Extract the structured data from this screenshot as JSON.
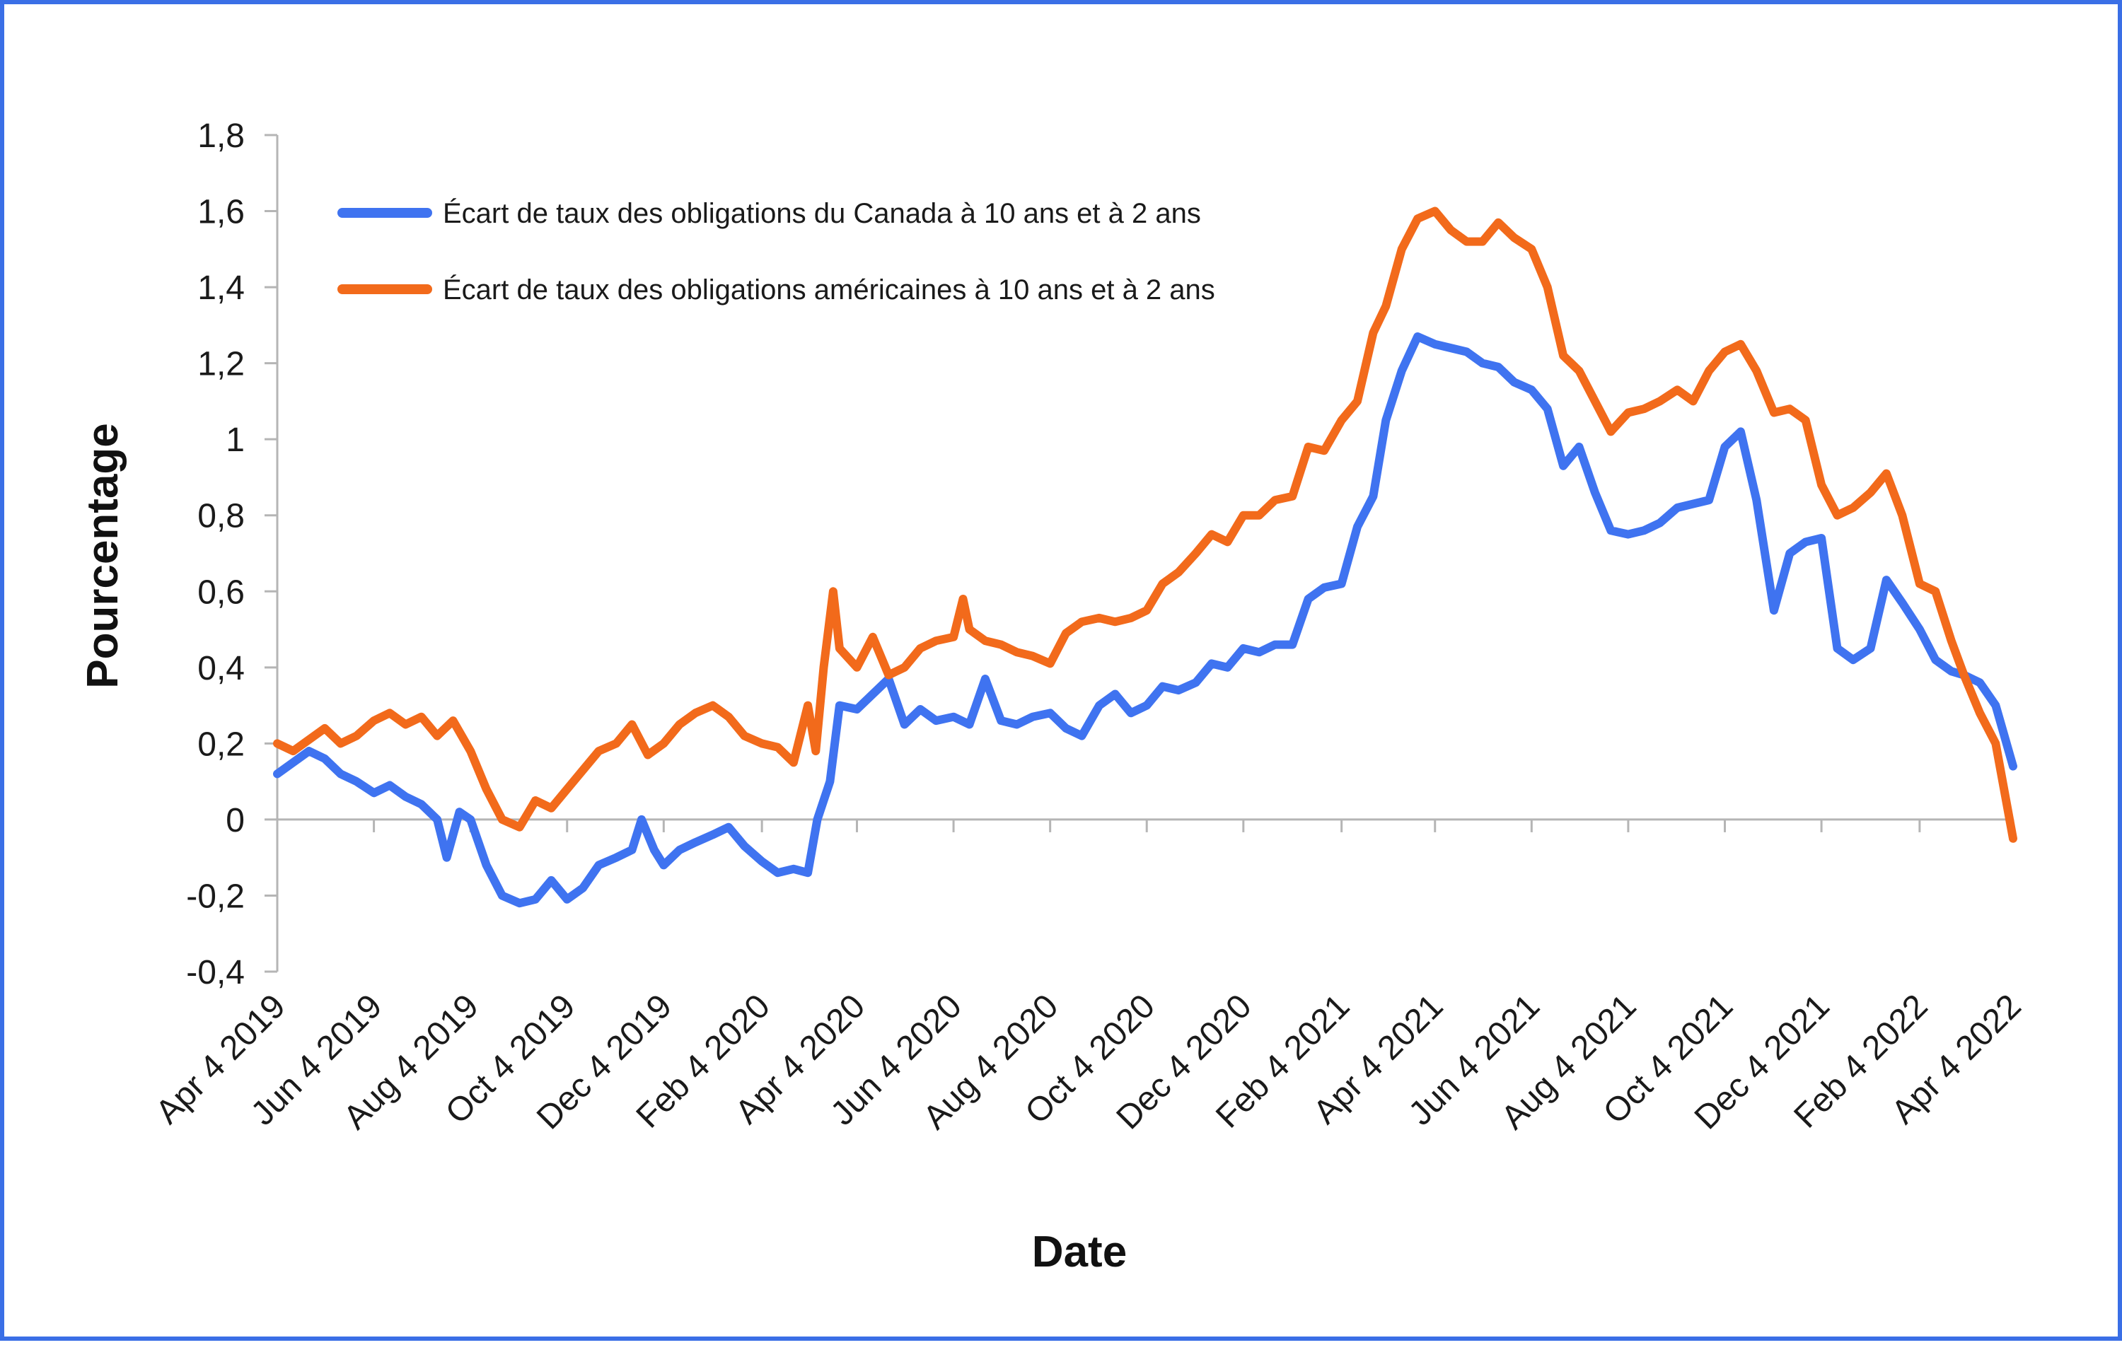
{
  "chart_data": {
    "type": "line",
    "title": "",
    "xlabel": "Date",
    "ylabel": "Pourcentage",
    "ylim": [
      -0.4,
      1.8
    ],
    "yticks": [
      {
        "value": 1.8,
        "label": "1,8"
      },
      {
        "value": 1.6,
        "label": "1,6"
      },
      {
        "value": 1.4,
        "label": "1,4"
      },
      {
        "value": 1.2,
        "label": "1,2"
      },
      {
        "value": 1.0,
        "label": "1"
      },
      {
        "value": 0.8,
        "label": "0,8"
      },
      {
        "value": 0.6,
        "label": "0,6"
      },
      {
        "value": 0.4,
        "label": "0,4"
      },
      {
        "value": 0.2,
        "label": "0,2"
      },
      {
        "value": 0.0,
        "label": "0"
      },
      {
        "value": -0.2,
        "label": "-0,2"
      },
      {
        "value": -0.4,
        "label": "-0,4"
      }
    ],
    "xlim": [
      "2019-04-04",
      "2022-04-04"
    ],
    "xticks": [
      {
        "date": "2019-04-04",
        "label": "Apr 4 2019"
      },
      {
        "date": "2019-06-04",
        "label": "Jun 4 2019"
      },
      {
        "date": "2019-08-04",
        "label": "Aug 4 2019"
      },
      {
        "date": "2019-10-04",
        "label": "Oct 4 2019"
      },
      {
        "date": "2019-12-04",
        "label": "Dec 4 2019"
      },
      {
        "date": "2020-02-04",
        "label": "Feb 4 2020"
      },
      {
        "date": "2020-04-04",
        "label": "Apr 4 2020"
      },
      {
        "date": "2020-06-04",
        "label": "Jun 4 2020"
      },
      {
        "date": "2020-08-04",
        "label": "Aug 4 2020"
      },
      {
        "date": "2020-10-04",
        "label": "Oct 4 2020"
      },
      {
        "date": "2020-12-04",
        "label": "Dec 4 2020"
      },
      {
        "date": "2021-02-04",
        "label": "Feb 4 2021"
      },
      {
        "date": "2021-04-04",
        "label": "Apr 4 2021"
      },
      {
        "date": "2021-06-04",
        "label": "Jun 4 2021"
      },
      {
        "date": "2021-08-04",
        "label": "Aug 4 2021"
      },
      {
        "date": "2021-10-04",
        "label": "Oct 4 2021"
      },
      {
        "date": "2021-12-04",
        "label": "Dec 4 2021"
      },
      {
        "date": "2022-02-04",
        "label": "Feb 4 2022"
      },
      {
        "date": "2022-04-04",
        "label": "Apr 4 2022"
      }
    ],
    "grid": false,
    "legend_position": "top-left",
    "series": [
      {
        "name": "Écart de taux des obligations du Canada à 10 ans et à 2 ans",
        "color": "#3f73f0",
        "points": [
          [
            "2019-04-04",
            0.12
          ],
          [
            "2019-04-14",
            0.15
          ],
          [
            "2019-04-24",
            0.18
          ],
          [
            "2019-05-04",
            0.16
          ],
          [
            "2019-05-14",
            0.12
          ],
          [
            "2019-05-24",
            0.1
          ],
          [
            "2019-06-04",
            0.07
          ],
          [
            "2019-06-14",
            0.09
          ],
          [
            "2019-06-24",
            0.06
          ],
          [
            "2019-07-04",
            0.04
          ],
          [
            "2019-07-14",
            0.0
          ],
          [
            "2019-07-20",
            -0.1
          ],
          [
            "2019-07-28",
            0.02
          ],
          [
            "2019-08-04",
            0.0
          ],
          [
            "2019-08-14",
            -0.12
          ],
          [
            "2019-08-24",
            -0.2
          ],
          [
            "2019-09-04",
            -0.22
          ],
          [
            "2019-09-14",
            -0.21
          ],
          [
            "2019-09-24",
            -0.16
          ],
          [
            "2019-10-04",
            -0.21
          ],
          [
            "2019-10-14",
            -0.18
          ],
          [
            "2019-10-24",
            -0.12
          ],
          [
            "2019-11-04",
            -0.1
          ],
          [
            "2019-11-14",
            -0.08
          ],
          [
            "2019-11-20",
            0.0
          ],
          [
            "2019-11-28",
            -0.08
          ],
          [
            "2019-12-04",
            -0.12
          ],
          [
            "2019-12-14",
            -0.08
          ],
          [
            "2019-12-24",
            -0.06
          ],
          [
            "2020-01-04",
            -0.04
          ],
          [
            "2020-01-14",
            -0.02
          ],
          [
            "2020-01-24",
            -0.07
          ],
          [
            "2020-02-04",
            -0.11
          ],
          [
            "2020-02-14",
            -0.14
          ],
          [
            "2020-02-24",
            -0.13
          ],
          [
            "2020-03-04",
            -0.14
          ],
          [
            "2020-03-10",
            0.0
          ],
          [
            "2020-03-18",
            0.1
          ],
          [
            "2020-03-24",
            0.3
          ],
          [
            "2020-04-04",
            0.29
          ],
          [
            "2020-04-14",
            0.33
          ],
          [
            "2020-04-24",
            0.37
          ],
          [
            "2020-05-04",
            0.25
          ],
          [
            "2020-05-14",
            0.29
          ],
          [
            "2020-05-24",
            0.26
          ],
          [
            "2020-06-04",
            0.27
          ],
          [
            "2020-06-14",
            0.25
          ],
          [
            "2020-06-24",
            0.37
          ],
          [
            "2020-07-04",
            0.26
          ],
          [
            "2020-07-14",
            0.25
          ],
          [
            "2020-07-24",
            0.27
          ],
          [
            "2020-08-04",
            0.28
          ],
          [
            "2020-08-14",
            0.24
          ],
          [
            "2020-08-24",
            0.22
          ],
          [
            "2020-09-04",
            0.3
          ],
          [
            "2020-09-14",
            0.33
          ],
          [
            "2020-09-24",
            0.28
          ],
          [
            "2020-10-04",
            0.3
          ],
          [
            "2020-10-14",
            0.35
          ],
          [
            "2020-10-24",
            0.34
          ],
          [
            "2020-11-04",
            0.36
          ],
          [
            "2020-11-14",
            0.41
          ],
          [
            "2020-11-24",
            0.4
          ],
          [
            "2020-12-04",
            0.45
          ],
          [
            "2020-12-14",
            0.44
          ],
          [
            "2020-12-24",
            0.46
          ],
          [
            "2021-01-04",
            0.46
          ],
          [
            "2021-01-14",
            0.58
          ],
          [
            "2021-01-24",
            0.61
          ],
          [
            "2021-02-04",
            0.62
          ],
          [
            "2021-02-14",
            0.77
          ],
          [
            "2021-02-24",
            0.85
          ],
          [
            "2021-03-04",
            1.05
          ],
          [
            "2021-03-14",
            1.18
          ],
          [
            "2021-03-24",
            1.27
          ],
          [
            "2021-04-04",
            1.25
          ],
          [
            "2021-04-14",
            1.24
          ],
          [
            "2021-04-24",
            1.23
          ],
          [
            "2021-05-04",
            1.2
          ],
          [
            "2021-05-14",
            1.19
          ],
          [
            "2021-05-24",
            1.15
          ],
          [
            "2021-06-04",
            1.13
          ],
          [
            "2021-06-14",
            1.08
          ],
          [
            "2021-06-24",
            0.93
          ],
          [
            "2021-07-04",
            0.98
          ],
          [
            "2021-07-14",
            0.86
          ],
          [
            "2021-07-24",
            0.76
          ],
          [
            "2021-08-04",
            0.75
          ],
          [
            "2021-08-14",
            0.76
          ],
          [
            "2021-08-24",
            0.78
          ],
          [
            "2021-09-04",
            0.82
          ],
          [
            "2021-09-14",
            0.83
          ],
          [
            "2021-09-24",
            0.84
          ],
          [
            "2021-10-04",
            0.98
          ],
          [
            "2021-10-14",
            1.02
          ],
          [
            "2021-10-24",
            0.84
          ],
          [
            "2021-11-04",
            0.55
          ],
          [
            "2021-11-14",
            0.7
          ],
          [
            "2021-11-24",
            0.73
          ],
          [
            "2021-12-04",
            0.74
          ],
          [
            "2021-12-14",
            0.45
          ],
          [
            "2021-12-24",
            0.42
          ],
          [
            "2022-01-04",
            0.45
          ],
          [
            "2022-01-14",
            0.63
          ],
          [
            "2022-01-24",
            0.57
          ],
          [
            "2022-02-04",
            0.5
          ],
          [
            "2022-02-14",
            0.42
          ],
          [
            "2022-02-24",
            0.39
          ],
          [
            "2022-03-04",
            0.38
          ],
          [
            "2022-03-14",
            0.36
          ],
          [
            "2022-03-24",
            0.3
          ],
          [
            "2022-04-04",
            0.14
          ]
        ]
      },
      {
        "name": "Écart de taux des obligations américaines à 10 ans et à 2 ans",
        "color": "#f26a1b",
        "points": [
          [
            "2019-04-04",
            0.2
          ],
          [
            "2019-04-14",
            0.18
          ],
          [
            "2019-04-24",
            0.21
          ],
          [
            "2019-05-04",
            0.24
          ],
          [
            "2019-05-14",
            0.2
          ],
          [
            "2019-05-24",
            0.22
          ],
          [
            "2019-06-04",
            0.26
          ],
          [
            "2019-06-14",
            0.28
          ],
          [
            "2019-06-24",
            0.25
          ],
          [
            "2019-07-04",
            0.27
          ],
          [
            "2019-07-14",
            0.22
          ],
          [
            "2019-07-24",
            0.26
          ],
          [
            "2019-08-04",
            0.18
          ],
          [
            "2019-08-14",
            0.08
          ],
          [
            "2019-08-24",
            0.0
          ],
          [
            "2019-09-04",
            -0.02
          ],
          [
            "2019-09-14",
            0.05
          ],
          [
            "2019-09-24",
            0.03
          ],
          [
            "2019-10-04",
            0.08
          ],
          [
            "2019-10-14",
            0.13
          ],
          [
            "2019-10-24",
            0.18
          ],
          [
            "2019-11-04",
            0.2
          ],
          [
            "2019-11-14",
            0.25
          ],
          [
            "2019-11-24",
            0.17
          ],
          [
            "2019-12-04",
            0.2
          ],
          [
            "2019-12-14",
            0.25
          ],
          [
            "2019-12-24",
            0.28
          ],
          [
            "2020-01-04",
            0.3
          ],
          [
            "2020-01-14",
            0.27
          ],
          [
            "2020-01-24",
            0.22
          ],
          [
            "2020-02-04",
            0.2
          ],
          [
            "2020-02-14",
            0.19
          ],
          [
            "2020-02-24",
            0.15
          ],
          [
            "2020-03-04",
            0.3
          ],
          [
            "2020-03-09",
            0.18
          ],
          [
            "2020-03-14",
            0.4
          ],
          [
            "2020-03-20",
            0.6
          ],
          [
            "2020-03-24",
            0.45
          ],
          [
            "2020-04-04",
            0.4
          ],
          [
            "2020-04-14",
            0.48
          ],
          [
            "2020-04-24",
            0.38
          ],
          [
            "2020-05-04",
            0.4
          ],
          [
            "2020-05-14",
            0.45
          ],
          [
            "2020-05-24",
            0.47
          ],
          [
            "2020-06-04",
            0.48
          ],
          [
            "2020-06-10",
            0.58
          ],
          [
            "2020-06-14",
            0.5
          ],
          [
            "2020-06-24",
            0.47
          ],
          [
            "2020-07-04",
            0.46
          ],
          [
            "2020-07-14",
            0.44
          ],
          [
            "2020-07-24",
            0.43
          ],
          [
            "2020-08-04",
            0.41
          ],
          [
            "2020-08-14",
            0.49
          ],
          [
            "2020-08-24",
            0.52
          ],
          [
            "2020-09-04",
            0.53
          ],
          [
            "2020-09-14",
            0.52
          ],
          [
            "2020-09-24",
            0.53
          ],
          [
            "2020-10-04",
            0.55
          ],
          [
            "2020-10-14",
            0.62
          ],
          [
            "2020-10-24",
            0.65
          ],
          [
            "2020-11-04",
            0.7
          ],
          [
            "2020-11-14",
            0.75
          ],
          [
            "2020-11-24",
            0.73
          ],
          [
            "2020-12-04",
            0.8
          ],
          [
            "2020-12-14",
            0.8
          ],
          [
            "2020-12-24",
            0.84
          ],
          [
            "2021-01-04",
            0.85
          ],
          [
            "2021-01-14",
            0.98
          ],
          [
            "2021-01-24",
            0.97
          ],
          [
            "2021-02-04",
            1.05
          ],
          [
            "2021-02-14",
            1.1
          ],
          [
            "2021-02-24",
            1.28
          ],
          [
            "2021-03-04",
            1.35
          ],
          [
            "2021-03-14",
            1.5
          ],
          [
            "2021-03-24",
            1.58
          ],
          [
            "2021-04-04",
            1.6
          ],
          [
            "2021-04-14",
            1.55
          ],
          [
            "2021-04-24",
            1.52
          ],
          [
            "2021-05-04",
            1.52
          ],
          [
            "2021-05-14",
            1.57
          ],
          [
            "2021-05-24",
            1.53
          ],
          [
            "2021-06-04",
            1.5
          ],
          [
            "2021-06-14",
            1.4
          ],
          [
            "2021-06-24",
            1.22
          ],
          [
            "2021-07-04",
            1.18
          ],
          [
            "2021-07-14",
            1.1
          ],
          [
            "2021-07-24",
            1.02
          ],
          [
            "2021-08-04",
            1.07
          ],
          [
            "2021-08-14",
            1.08
          ],
          [
            "2021-08-24",
            1.1
          ],
          [
            "2021-09-04",
            1.13
          ],
          [
            "2021-09-14",
            1.1
          ],
          [
            "2021-09-24",
            1.18
          ],
          [
            "2021-10-04",
            1.23
          ],
          [
            "2021-10-14",
            1.25
          ],
          [
            "2021-10-24",
            1.18
          ],
          [
            "2021-11-04",
            1.07
          ],
          [
            "2021-11-14",
            1.08
          ],
          [
            "2021-11-24",
            1.05
          ],
          [
            "2021-12-04",
            0.88
          ],
          [
            "2021-12-14",
            0.8
          ],
          [
            "2021-12-24",
            0.82
          ],
          [
            "2022-01-04",
            0.86
          ],
          [
            "2022-01-14",
            0.91
          ],
          [
            "2022-01-24",
            0.8
          ],
          [
            "2022-02-04",
            0.62
          ],
          [
            "2022-02-14",
            0.6
          ],
          [
            "2022-02-24",
            0.47
          ],
          [
            "2022-03-04",
            0.38
          ],
          [
            "2022-03-14",
            0.28
          ],
          [
            "2022-03-24",
            0.2
          ],
          [
            "2022-04-04",
            -0.05
          ]
        ]
      }
    ]
  }
}
